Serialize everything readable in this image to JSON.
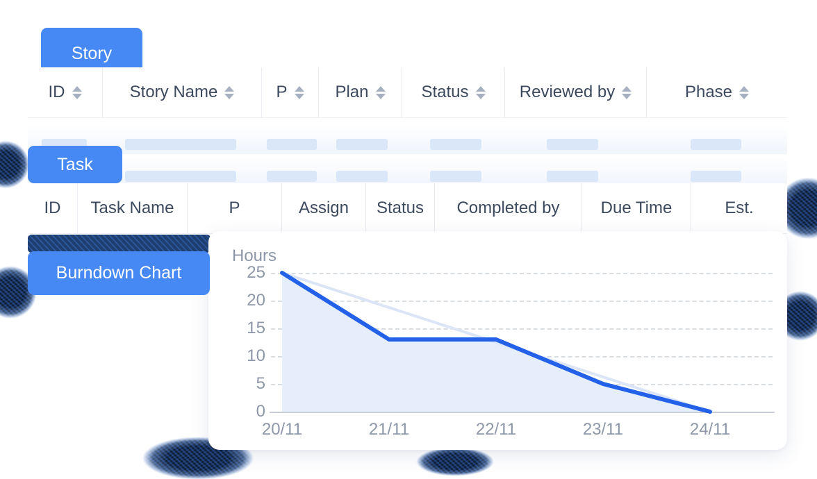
{
  "tabs": {
    "story": "Story",
    "task": "Task",
    "burndown": "Burndown Chart"
  },
  "story_table": {
    "columns": [
      {
        "label": "ID",
        "sortable": true
      },
      {
        "label": "Story Name",
        "sortable": true
      },
      {
        "label": "P",
        "sortable": true
      },
      {
        "label": "Plan",
        "sortable": true
      },
      {
        "label": "Status",
        "sortable": true
      },
      {
        "label": "Reviewed by",
        "sortable": true
      },
      {
        "label": "Phase",
        "sortable": true
      }
    ]
  },
  "task_table": {
    "columns": [
      {
        "label": "ID",
        "sortable": false
      },
      {
        "label": "Task Name",
        "sortable": false
      },
      {
        "label": "P",
        "sortable": false
      },
      {
        "label": "Assign",
        "sortable": false
      },
      {
        "label": "Status",
        "sortable": false
      },
      {
        "label": "Completed by",
        "sortable": false
      },
      {
        "label": "Due Time",
        "sortable": false
      },
      {
        "label": "Est.",
        "sortable": false
      }
    ]
  },
  "chart_data": {
    "type": "line",
    "title": "Burndown Chart",
    "ylabel": "Hours",
    "x": [
      "20/11",
      "21/11",
      "22/11",
      "23/11",
      "24/11"
    ],
    "yticks": [
      0,
      5,
      10,
      15,
      20,
      25
    ],
    "ylim": [
      0,
      25
    ],
    "grid": "dashed-horizontal",
    "legend": "none",
    "series": [
      {
        "name": "remaining-hours",
        "values": [
          25,
          13,
          13,
          5,
          0
        ],
        "style": "bold-blue-line-with-area-fill"
      },
      {
        "name": "ideal-burndown",
        "values": [
          25,
          18.75,
          12.5,
          6.25,
          0
        ],
        "style": "faint-light-blue-line"
      }
    ]
  },
  "colors": {
    "accent_blue": "#4789f4",
    "line_blue": "#2461e9",
    "area_fill": "#e7eefb",
    "ideal_line": "#dbe5f6",
    "skeleton_bar": "#d9e7f8",
    "header_text": "#3d4a5e",
    "tick_text": "#8d97a7",
    "navy_decoration": "#1d3e6e"
  }
}
